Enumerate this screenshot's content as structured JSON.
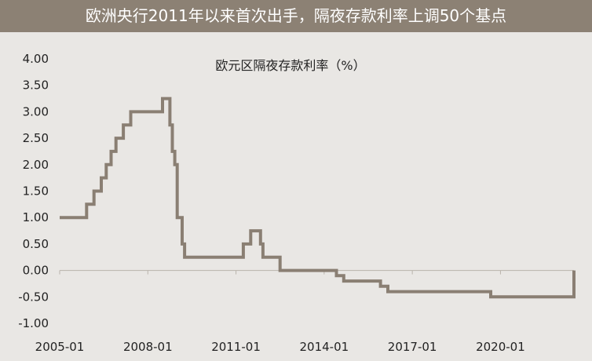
{
  "header": {
    "title": "欧洲央行2011年以来首次出手，隔夜存款利率上调50个基点"
  },
  "colors": {
    "banner_bg": "#8c8174",
    "line": "#8a7f73",
    "axis": "#b9b3ab",
    "background": "#e9e7e4"
  },
  "chart_data": {
    "type": "line",
    "title": "欧元区隔夜存款利率（%）",
    "xlabel": "",
    "ylabel": "",
    "ylim": [
      -1.0,
      4.0
    ],
    "yticks": [
      "4.00",
      "3.50",
      "3.00",
      "2.50",
      "2.00",
      "1.50",
      "1.00",
      "0.50",
      "0.00",
      "-0.50",
      "-1.00"
    ],
    "xticks": [
      "2005-01",
      "2008-01",
      "2011-01",
      "2014-01",
      "2017-01",
      "2020-01"
    ],
    "xlim": [
      "2005-01",
      "2022-07"
    ],
    "grid": false,
    "legend": "none",
    "step": true,
    "series": [
      {
        "name": "",
        "x": [
          "2005-01",
          "2005-12",
          "2006-03",
          "2006-06",
          "2006-08",
          "2006-10",
          "2006-12",
          "2007-03",
          "2007-06",
          "2008-07",
          "2008-10",
          "2008-11",
          "2008-12",
          "2009-01",
          "2009-03",
          "2009-04",
          "2009-05",
          "2011-04",
          "2011-07",
          "2011-11",
          "2011-12",
          "2012-07",
          "2013-11",
          "2014-06",
          "2014-09",
          "2015-12",
          "2016-03",
          "2019-09",
          "2022-07",
          "2022-07"
        ],
        "values": [
          1.0,
          1.25,
          1.5,
          1.75,
          2.0,
          2.25,
          2.5,
          2.75,
          3.0,
          3.25,
          2.75,
          2.25,
          2.0,
          1.0,
          0.5,
          0.25,
          0.25,
          0.5,
          0.75,
          0.5,
          0.25,
          0.0,
          0.0,
          -0.1,
          -0.2,
          -0.3,
          -0.4,
          -0.5,
          -0.5,
          0.0
        ]
      }
    ]
  }
}
